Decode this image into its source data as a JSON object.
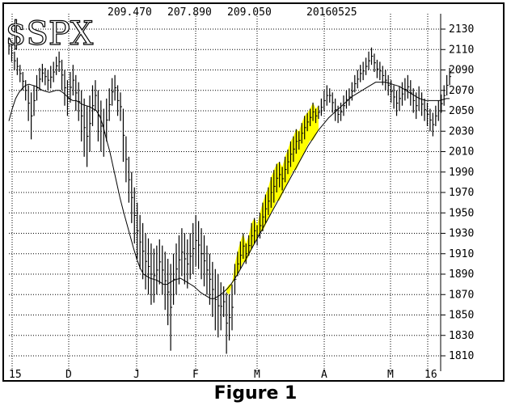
{
  "caption": "Figure 1",
  "chart_data": {
    "type": "bar",
    "symbol": "$SPX",
    "header": [
      "209.470",
      "207.890",
      "209.050",
      "20160525"
    ],
    "y_ticks": [
      2130,
      2110,
      2090,
      2070,
      2050,
      2030,
      2010,
      1990,
      1970,
      1950,
      1930,
      1910,
      1890,
      1870,
      1850,
      1830,
      1810
    ],
    "ylim": [
      1806,
      2142
    ],
    "x_ticks": [
      "15",
      "D",
      "J",
      "F",
      "M",
      "A",
      "M",
      "16"
    ],
    "grid": true,
    "colors": {
      "highlight": "#ffff00",
      "line": "#000000"
    },
    "series": [
      {
        "values": [
          [
            2122,
            2105
          ],
          [
            2115,
            2098
          ],
          [
            2108,
            2090
          ],
          [
            2102,
            2085
          ],
          [
            2095,
            2078
          ],
          [
            2088,
            2070
          ],
          [
            2080,
            2060
          ],
          [
            2075,
            2040
          ],
          [
            2068,
            2022
          ],
          [
            2075,
            2045
          ],
          [
            2085,
            2060
          ],
          [
            2092,
            2070
          ],
          [
            2096,
            2078
          ],
          [
            2092,
            2075
          ],
          [
            2090,
            2070
          ],
          [
            2094,
            2072
          ],
          [
            2098,
            2078
          ],
          [
            2103,
            2085
          ],
          [
            2108,
            2088
          ],
          [
            2100,
            2070
          ],
          [
            2090,
            2055
          ],
          [
            2080,
            2045
          ],
          [
            2088,
            2058
          ],
          [
            2095,
            2065
          ],
          [
            2085,
            2050
          ],
          [
            2078,
            2040
          ],
          [
            2070,
            2020
          ],
          [
            2062,
            2005
          ],
          [
            2055,
            1995
          ],
          [
            2065,
            2010
          ],
          [
            2075,
            2035
          ],
          [
            2080,
            2050
          ],
          [
            2070,
            2020
          ],
          [
            2060,
            2010
          ],
          [
            2052,
            2005
          ],
          [
            2062,
            2020
          ],
          [
            2072,
            2040
          ],
          [
            2082,
            2055
          ],
          [
            2085,
            2060
          ],
          [
            2075,
            2045
          ],
          [
            2068,
            2040
          ],
          [
            2052,
            2000
          ],
          [
            2025,
            1980
          ],
          [
            2005,
            1960
          ],
          [
            1990,
            1940
          ],
          [
            1975,
            1920
          ],
          [
            1960,
            1905
          ],
          [
            1948,
            1895
          ],
          [
            1940,
            1885
          ],
          [
            1930,
            1875
          ],
          [
            1925,
            1870
          ],
          [
            1920,
            1860
          ],
          [
            1915,
            1862
          ],
          [
            1918,
            1870
          ],
          [
            1924,
            1880
          ],
          [
            1918,
            1870
          ],
          [
            1912,
            1855
          ],
          [
            1905,
            1840
          ],
          [
            1900,
            1815
          ],
          [
            1910,
            1860
          ],
          [
            1920,
            1870
          ],
          [
            1928,
            1880
          ],
          [
            1935,
            1888
          ],
          [
            1930,
            1880
          ],
          [
            1924,
            1876
          ],
          [
            1930,
            1885
          ],
          [
            1940,
            1890
          ],
          [
            1948,
            1898
          ],
          [
            1942,
            1895
          ],
          [
            1935,
            1885
          ],
          [
            1928,
            1878
          ],
          [
            1918,
            1870
          ],
          [
            1910,
            1860
          ],
          [
            1902,
            1848
          ],
          [
            1895,
            1835
          ],
          [
            1890,
            1828
          ],
          [
            1882,
            1835
          ],
          [
            1878,
            1848
          ],
          [
            1872,
            1812
          ],
          [
            1870,
            1825
          ],
          [
            1880,
            1835
          ],
          [
            1900,
            1870
          ],
          [
            1912,
            1888
          ],
          [
            1922,
            1895
          ],
          [
            1930,
            1905
          ],
          [
            1920,
            1900
          ],
          [
            1928,
            1908
          ],
          [
            1940,
            1915
          ],
          [
            1945,
            1920
          ],
          [
            1938,
            1918
          ],
          [
            1950,
            1925
          ],
          [
            1960,
            1932
          ],
          [
            1968,
            1940
          ],
          [
            1975,
            1948
          ],
          [
            1985,
            1955
          ],
          [
            1992,
            1960
          ],
          [
            1998,
            1970
          ],
          [
            2000,
            1975
          ],
          [
            1995,
            1972
          ],
          [
            2005,
            1980
          ],
          [
            2012,
            1988
          ],
          [
            2020,
            1995
          ],
          [
            2025,
            2000
          ],
          [
            2032,
            2008
          ],
          [
            2030,
            2012
          ],
          [
            2038,
            2018
          ],
          [
            2045,
            2022
          ],
          [
            2048,
            2030
          ],
          [
            2052,
            2035
          ],
          [
            2058,
            2040
          ],
          [
            2052,
            2038
          ],
          [
            2055,
            2042
          ],
          [
            2062,
            2045
          ],
          [
            2070,
            2050
          ],
          [
            2075,
            2055
          ],
          [
            2072,
            2058
          ],
          [
            2068,
            2048
          ],
          [
            2062,
            2040
          ],
          [
            2055,
            2038
          ],
          [
            2058,
            2040
          ],
          [
            2065,
            2045
          ],
          [
            2070,
            2052
          ],
          [
            2072,
            2055
          ],
          [
            2078,
            2060
          ],
          [
            2085,
            2068
          ],
          [
            2090,
            2072
          ],
          [
            2095,
            2078
          ],
          [
            2098,
            2080
          ],
          [
            2102,
            2085
          ],
          [
            2108,
            2090
          ],
          [
            2112,
            2095
          ],
          [
            2106,
            2088
          ],
          [
            2100,
            2082
          ],
          [
            2098,
            2080
          ],
          [
            2094,
            2075
          ],
          [
            2090,
            2070
          ],
          [
            2085,
            2065
          ],
          [
            2080,
            2058
          ],
          [
            2075,
            2052
          ],
          [
            2070,
            2045
          ],
          [
            2074,
            2050
          ],
          [
            2078,
            2055
          ],
          [
            2082,
            2060
          ],
          [
            2085,
            2062
          ],
          [
            2080,
            2055
          ],
          [
            2072,
            2048
          ],
          [
            2068,
            2042
          ],
          [
            2074,
            2050
          ],
          [
            2068,
            2045
          ],
          [
            2062,
            2040
          ],
          [
            2058,
            2035
          ],
          [
            2052,
            2030
          ],
          [
            2048,
            2025
          ],
          [
            2055,
            2035
          ],
          [
            2060,
            2040
          ],
          [
            2066,
            2048
          ],
          [
            2075,
            2055
          ],
          [
            2085,
            2065
          ],
          [
            2092,
            2075
          ]
        ]
      },
      {
        "values": [
          2040,
          2052,
          2062,
          2068,
          2072,
          2075,
          2076,
          2075,
          2074,
          2072,
          2070,
          2069,
          2068,
          2069,
          2070,
          2070,
          2068,
          2065,
          2062,
          2060,
          2060,
          2058,
          2056,
          2055,
          2054,
          2052,
          2050,
          2045,
          2035,
          2022,
          2010,
          1995,
          1980,
          1965,
          1952,
          1940,
          1928,
          1916,
          1905,
          1896,
          1890,
          1888,
          1886,
          1885,
          1884,
          1882,
          1880,
          1880,
          1882,
          1884,
          1885,
          1886,
          1884,
          1882,
          1880,
          1878,
          1875,
          1872,
          1870,
          1868,
          1866,
          1866,
          1868,
          1870,
          1873,
          1876,
          1880,
          1885,
          1890,
          1896,
          1902,
          1908,
          1914,
          1920,
          1926,
          1932,
          1938,
          1944,
          1950,
          1956,
          1962,
          1968,
          1974,
          1980,
          1986,
          1992,
          1998,
          2004,
          2010,
          2016,
          2021,
          2026,
          2031,
          2035,
          2039,
          2043,
          2046,
          2049,
          2052,
          2055,
          2058,
          2061,
          2064,
          2066,
          2068,
          2070,
          2072,
          2074,
          2076,
          2078,
          2078,
          2078,
          2078,
          2077,
          2076,
          2075,
          2074,
          2072,
          2070,
          2068,
          2066,
          2064,
          2062,
          2061,
          2060,
          2060,
          2060,
          2060,
          2060,
          2061,
          2062,
          2062
        ]
      }
    ],
    "shaded_start": 78,
    "shaded_end": 111,
    "avg_x_start": 0,
    "avg_x_end": 147
  }
}
